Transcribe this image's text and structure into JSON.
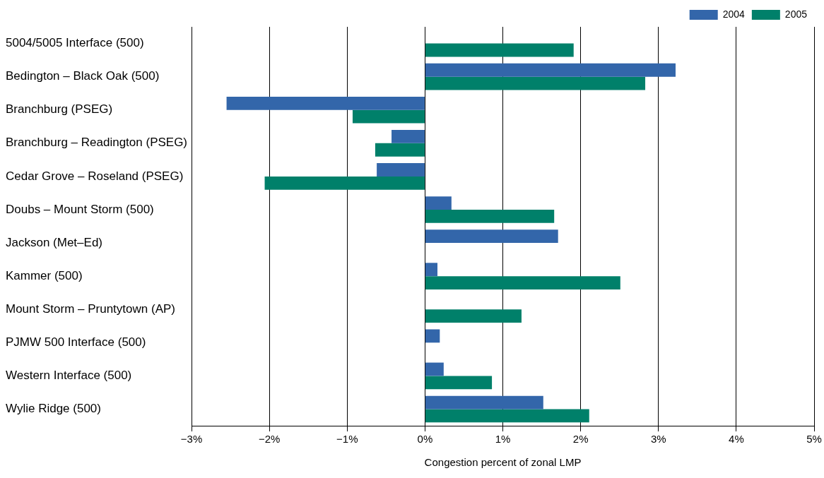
{
  "chart_data": {
    "type": "bar",
    "orientation": "horizontal",
    "xlabel": "Congestion percent of zonal LMP",
    "categories": [
      "5004/5005 Interface (500)",
      "Bedington – Black Oak (500)",
      "Branchburg (PSEG)",
      "Branchburg – Readington (PSEG)",
      "Cedar Grove – Roseland (PSEG)",
      "Doubs – Mount Storm (500)",
      "Jackson (Met–Ed)",
      "Kammer (500)",
      "Mount Storm – Pruntytown (AP)",
      "PJMW 500 Interface (500)",
      "Western Interface (500)",
      "Wylie Ridge (500)"
    ],
    "series": [
      {
        "name": "2004",
        "color": "#3366aa",
        "values": [
          null,
          3.22,
          -2.55,
          -0.43,
          -0.62,
          0.34,
          1.71,
          0.16,
          null,
          0.19,
          0.24,
          1.52
        ]
      },
      {
        "name": "2005",
        "color": "#00806a",
        "values": [
          1.91,
          2.83,
          -0.93,
          -0.64,
          -2.06,
          1.66,
          null,
          2.51,
          1.24,
          null,
          0.86,
          2.11
        ]
      }
    ],
    "xlim": [
      -3,
      5
    ],
    "xticks": [
      {
        "value": -3,
        "label": "−3%"
      },
      {
        "value": -2,
        "label": "−2%"
      },
      {
        "value": -1,
        "label": "−1%"
      },
      {
        "value": 0,
        "label": "0%"
      },
      {
        "value": 1,
        "label": "1%"
      },
      {
        "value": 2,
        "label": "2%"
      },
      {
        "value": 3,
        "label": "3%"
      },
      {
        "value": 4,
        "label": "4%"
      },
      {
        "value": 5,
        "label": "5%"
      }
    ],
    "grid": "x",
    "legend": "top right"
  }
}
